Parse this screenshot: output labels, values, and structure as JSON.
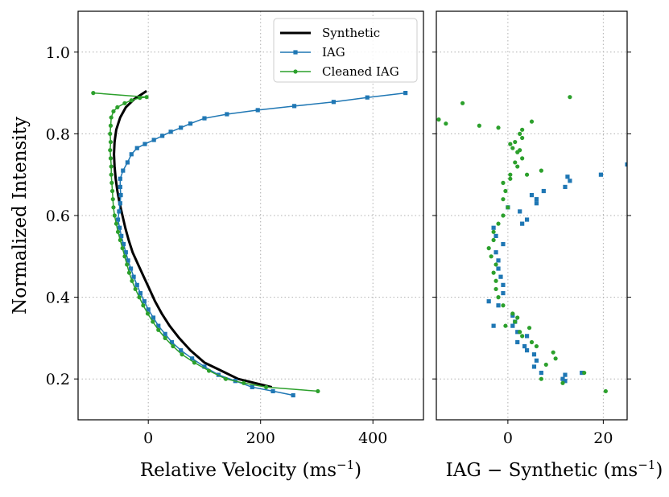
{
  "chart_data": [
    {
      "type": "line",
      "panel": "left",
      "title": "",
      "xlabel": "Relative Velocity (ms",
      "xlabel_sup": "−1",
      "xlabel_close": ")",
      "ylabel": "Normalized Intensity",
      "xlim": [
        -125,
        490
      ],
      "ylim": [
        0.1,
        1.1
      ],
      "xticks": [
        0,
        200,
        400
      ],
      "yticks": [
        0.2,
        0.4,
        0.6,
        0.8,
        1.0
      ],
      "xtick_labels": [
        "0",
        "200",
        "400"
      ],
      "ytick_labels": [
        "0.2",
        "0.4",
        "0.6",
        "0.8",
        "1.0"
      ],
      "grid": true,
      "legend_position": "top-right",
      "series": [
        {
          "name": "Synthetic",
          "color": "#000000",
          "marker": "none",
          "points": [
            [
              220,
              0.18
            ],
            [
              190,
              0.19
            ],
            [
              160,
              0.2
            ],
            [
              130,
              0.22
            ],
            [
              100,
              0.24
            ],
            [
              75,
              0.27
            ],
            [
              55,
              0.3
            ],
            [
              38,
              0.33
            ],
            [
              24,
              0.36
            ],
            [
              12,
              0.39
            ],
            [
              2,
              0.42
            ],
            [
              -8,
              0.45
            ],
            [
              -18,
              0.48
            ],
            [
              -28,
              0.51
            ],
            [
              -35,
              0.54
            ],
            [
              -41,
              0.57
            ],
            [
              -46,
              0.6
            ],
            [
              -51,
              0.63
            ],
            [
              -55,
              0.66
            ],
            [
              -58,
              0.69
            ],
            [
              -60,
              0.72
            ],
            [
              -61,
              0.75
            ],
            [
              -60,
              0.78
            ],
            [
              -57,
              0.81
            ],
            [
              -50,
              0.84
            ],
            [
              -40,
              0.865
            ],
            [
              -25,
              0.885
            ],
            [
              -3,
              0.905
            ]
          ]
        },
        {
          "name": "IAG",
          "color": "#1f77b4",
          "marker": "square",
          "points": [
            [
              258,
              0.16
            ],
            [
              222,
              0.17
            ],
            [
              185,
              0.18
            ],
            [
              155,
              0.195
            ],
            [
              125,
              0.21
            ],
            [
              100,
              0.23
            ],
            [
              78,
              0.25
            ],
            [
              58,
              0.27
            ],
            [
              42,
              0.29
            ],
            [
              30,
              0.31
            ],
            [
              18,
              0.33
            ],
            [
              9,
              0.35
            ],
            [
              0,
              0.37
            ],
            [
              -7,
              0.39
            ],
            [
              -14,
              0.41
            ],
            [
              -20,
              0.43
            ],
            [
              -26,
              0.45
            ],
            [
              -31,
              0.47
            ],
            [
              -36,
              0.49
            ],
            [
              -40,
              0.51
            ],
            [
              -44,
              0.53
            ],
            [
              -48,
              0.55
            ],
            [
              -51,
              0.57
            ],
            [
              -54,
              0.59
            ],
            [
              -52,
              0.61
            ],
            [
              -50,
              0.63
            ],
            [
              -49,
              0.65
            ],
            [
              -50,
              0.67
            ],
            [
              -50,
              0.69
            ],
            [
              -45,
              0.71
            ],
            [
              -37,
              0.73
            ],
            [
              -30,
              0.75
            ],
            [
              -20,
              0.765
            ],
            [
              -6,
              0.775
            ],
            [
              10,
              0.785
            ],
            [
              25,
              0.795
            ],
            [
              40,
              0.805
            ],
            [
              58,
              0.815
            ],
            [
              75,
              0.825
            ],
            [
              100,
              0.838
            ],
            [
              140,
              0.848
            ],
            [
              195,
              0.858
            ],
            [
              260,
              0.868
            ],
            [
              330,
              0.878
            ],
            [
              390,
              0.889
            ],
            [
              458,
              0.9
            ]
          ]
        },
        {
          "name": "Cleaned IAG",
          "color": "#2ca02c",
          "marker": "circle",
          "points": [
            [
              302,
              0.17
            ],
            [
              210,
              0.18
            ],
            [
              170,
              0.19
            ],
            [
              138,
              0.2
            ],
            [
              108,
              0.22
            ],
            [
              82,
              0.24
            ],
            [
              60,
              0.26
            ],
            [
              44,
              0.28
            ],
            [
              30,
              0.3
            ],
            [
              18,
              0.32
            ],
            [
              8,
              0.34
            ],
            [
              -1,
              0.36
            ],
            [
              -9,
              0.38
            ],
            [
              -16,
              0.4
            ],
            [
              -23,
              0.42
            ],
            [
              -29,
              0.44
            ],
            [
              -34,
              0.46
            ],
            [
              -38,
              0.48
            ],
            [
              -42,
              0.5
            ],
            [
              -46,
              0.52
            ],
            [
              -50,
              0.54
            ],
            [
              -54,
              0.56
            ],
            [
              -57,
              0.58
            ],
            [
              -60,
              0.6
            ],
            [
              -62,
              0.62
            ],
            [
              -63,
              0.64
            ],
            [
              -64,
              0.66
            ],
            [
              -65,
              0.68
            ],
            [
              -66,
              0.7
            ],
            [
              -66,
              0.72
            ],
            [
              -67,
              0.74
            ],
            [
              -68,
              0.76
            ],
            [
              -67,
              0.78
            ],
            [
              -68,
              0.8
            ],
            [
              -67,
              0.82
            ],
            [
              -66,
              0.84
            ],
            [
              -62,
              0.855
            ],
            [
              -55,
              0.865
            ],
            [
              -42,
              0.875
            ],
            [
              -30,
              0.882
            ],
            [
              -15,
              0.888
            ],
            [
              -3,
              0.89
            ],
            [
              -98,
              0.9
            ]
          ]
        }
      ]
    },
    {
      "type": "scatter",
      "panel": "right",
      "title": "",
      "xlabel": "IAG  −  Synthetic (ms",
      "xlabel_sup": "−1",
      "xlabel_close": ")",
      "ylabel": "",
      "xlim": [
        -15,
        25
      ],
      "ylim": [
        0.1,
        1.1
      ],
      "xticks": [
        0,
        20
      ],
      "yticks": [
        0.2,
        0.4,
        0.6,
        0.8,
        1.0
      ],
      "xtick_labels": [
        "0",
        "20"
      ],
      "grid": true,
      "series": [
        {
          "name": "IAG",
          "color": "#1f77b4",
          "marker": "square",
          "points": [
            [
              12,
              0.195
            ],
            [
              11.5,
              0.2
            ],
            [
              12,
              0.21
            ],
            [
              15.5,
              0.215
            ],
            [
              7,
              0.215
            ],
            [
              5.5,
              0.23
            ],
            [
              6,
              0.245
            ],
            [
              5.5,
              0.26
            ],
            [
              4,
              0.27
            ],
            [
              3.5,
              0.28
            ],
            [
              2,
              0.29
            ],
            [
              4,
              0.305
            ],
            [
              2,
              0.315
            ],
            [
              1,
              0.33
            ],
            [
              -3,
              0.33
            ],
            [
              1.5,
              0.34
            ],
            [
              1,
              0.355
            ],
            [
              -2,
              0.38
            ],
            [
              -4,
              0.39
            ],
            [
              -1,
              0.41
            ],
            [
              -1,
              0.43
            ],
            [
              -1.5,
              0.45
            ],
            [
              -2,
              0.47
            ],
            [
              -2,
              0.49
            ],
            [
              -2.5,
              0.51
            ],
            [
              -1,
              0.53
            ],
            [
              -2.5,
              0.55
            ],
            [
              -3,
              0.57
            ],
            [
              3,
              0.58
            ],
            [
              4,
              0.59
            ],
            [
              2.5,
              0.61
            ],
            [
              0,
              0.62
            ],
            [
              6,
              0.63
            ],
            [
              6,
              0.64
            ],
            [
              5,
              0.65
            ],
            [
              7.5,
              0.66
            ],
            [
              12,
              0.67
            ],
            [
              13,
              0.685
            ],
            [
              12.5,
              0.695
            ],
            [
              19.5,
              0.7
            ],
            [
              25,
              0.725
            ]
          ]
        },
        {
          "name": "Cleaned IAG",
          "color": "#2ca02c",
          "marker": "circle",
          "points": [
            [
              20.5,
              0.17
            ],
            [
              11.5,
              0.19
            ],
            [
              7,
              0.2
            ],
            [
              16,
              0.215
            ],
            [
              8,
              0.235
            ],
            [
              10,
              0.25
            ],
            [
              9.5,
              0.265
            ],
            [
              6,
              0.28
            ],
            [
              5,
              0.29
            ],
            [
              3,
              0.305
            ],
            [
              2.5,
              0.315
            ],
            [
              4.5,
              0.325
            ],
            [
              -0.5,
              0.33
            ],
            [
              1.5,
              0.34
            ],
            [
              2,
              0.35
            ],
            [
              1,
              0.36
            ],
            [
              -1,
              0.38
            ],
            [
              -2,
              0.4
            ],
            [
              -2.5,
              0.42
            ],
            [
              -2.5,
              0.44
            ],
            [
              -3,
              0.46
            ],
            [
              -2.5,
              0.48
            ],
            [
              -3.5,
              0.5
            ],
            [
              -4,
              0.52
            ],
            [
              -3,
              0.54
            ],
            [
              -3,
              0.56
            ],
            [
              -2,
              0.58
            ],
            [
              -1,
              0.6
            ],
            [
              0,
              0.62
            ],
            [
              -1,
              0.64
            ],
            [
              -0.5,
              0.66
            ],
            [
              -1,
              0.68
            ],
            [
              0.5,
              0.7
            ],
            [
              2,
              0.72
            ],
            [
              3,
              0.74
            ],
            [
              2.5,
              0.76
            ],
            [
              1.5,
              0.78
            ],
            [
              3,
              0.79
            ],
            [
              3,
              0.81
            ],
            [
              5,
              0.83
            ],
            [
              -2,
              0.815
            ],
            [
              -6,
              0.82
            ],
            [
              -13,
              0.825
            ],
            [
              -14.5,
              0.835
            ],
            [
              -9.5,
              0.875
            ],
            [
              13,
              0.89
            ],
            [
              0.5,
              0.69
            ],
            [
              4,
              0.7
            ],
            [
              7,
              0.71
            ],
            [
              1.5,
              0.73
            ],
            [
              2,
              0.755
            ],
            [
              1,
              0.765
            ],
            [
              0.5,
              0.775
            ],
            [
              2.5,
              0.8
            ]
          ]
        }
      ]
    }
  ]
}
